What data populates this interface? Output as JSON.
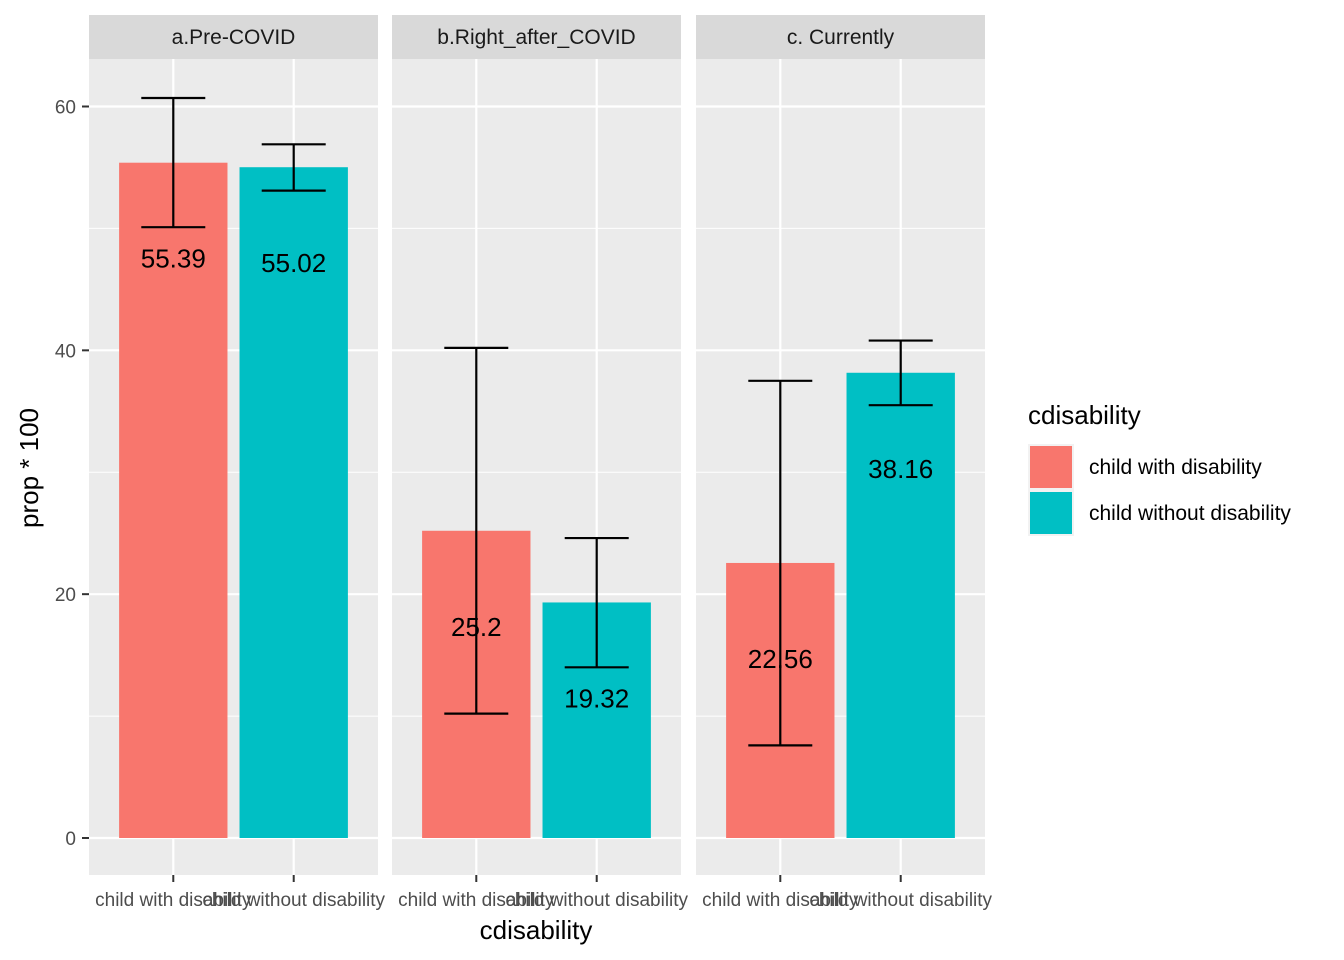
{
  "chart_data": {
    "type": "bar",
    "xlabel": "cdisability",
    "ylabel": "prop * 100",
    "ylim": [
      -3,
      64
    ],
    "yticks": [
      0,
      20,
      40,
      60
    ],
    "grid": true,
    "legend": {
      "title": "cdisability",
      "placement": "right",
      "entries": [
        {
          "label": "child with disability",
          "color": "#F8766D"
        },
        {
          "label": "child without disability",
          "color": "#00BFC4"
        }
      ]
    },
    "categories": [
      "child with disability",
      "child without disability"
    ],
    "panels": [
      {
        "title": "a.Pre-COVID",
        "values": [
          55.39,
          55.02
        ],
        "labels": [
          "55.39",
          "55.02"
        ],
        "error_low": [
          50.1,
          53.1
        ],
        "error_high": [
          60.7,
          56.9
        ]
      },
      {
        "title": "b.Right_after_COVID",
        "values": [
          25.2,
          19.32
        ],
        "labels": [
          "25.2",
          "19.32"
        ],
        "error_low": [
          10.2,
          14.0
        ],
        "error_high": [
          40.2,
          24.6
        ]
      },
      {
        "title": "c. Currently",
        "values": [
          22.56,
          38.16
        ],
        "labels": [
          "22.56",
          "38.16"
        ],
        "error_low": [
          7.6,
          35.5
        ],
        "error_high": [
          37.5,
          40.8
        ]
      }
    ]
  }
}
